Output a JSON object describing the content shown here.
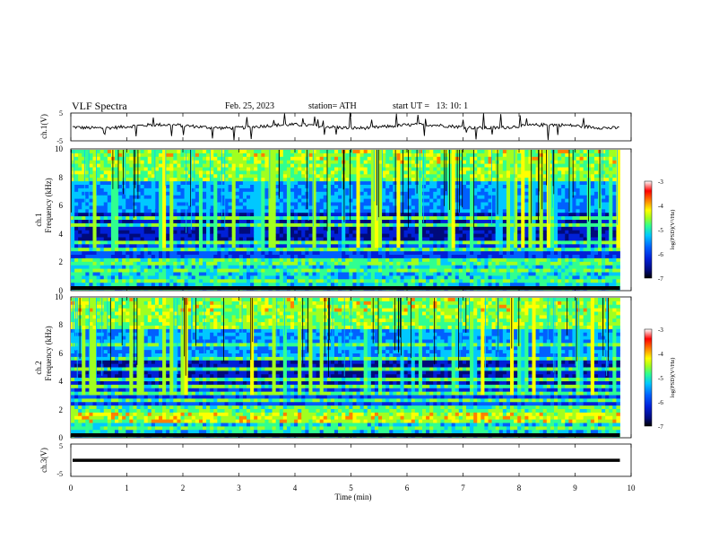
{
  "header": {
    "title": "VLF Spectra",
    "date": "Feb. 25, 2023",
    "station": "station= ATH",
    "start": "start UT =   13: 10: 1"
  },
  "colors": {
    "spectrogram_scale": [
      "#000000",
      "#000a7a",
      "#0020d8",
      "#0060ff",
      "#00c8ff",
      "#30ff90",
      "#a0ff20",
      "#ffff00",
      "#ff8000",
      "#ff0000",
      "#ffffff"
    ]
  },
  "chart_data": [
    {
      "type": "line",
      "panel": "ch1-waveform",
      "ylabel": "ch.1(V)",
      "ylim": [
        -5,
        5
      ],
      "yticks": [
        "5",
        "-5"
      ],
      "xlim": [
        0,
        10
      ],
      "signal_level_v": 0.2
    },
    {
      "type": "heatmap",
      "panel": "ch1-spectrogram",
      "ylabel": "Frequency (kHz)",
      "channel_label": "ch.1",
      "ylim": [
        0,
        10
      ],
      "yticks": [
        "0",
        "2",
        "4",
        "6",
        "8",
        "10"
      ],
      "xlim": [
        0,
        10
      ],
      "data_end_min": 9.8,
      "colorbar": {
        "label": "log(PSD)(V²/Hz)",
        "range": [
          -7,
          -3
        ],
        "ticks": [
          "-3",
          "-4",
          "-5",
          "-6",
          "-7"
        ]
      }
    },
    {
      "type": "heatmap",
      "panel": "ch2-spectrogram",
      "ylabel": "Frequency (kHz)",
      "channel_label": "ch.2",
      "ylim": [
        0,
        10
      ],
      "yticks": [
        "0",
        "2",
        "4",
        "6",
        "8",
        "10"
      ],
      "xlim": [
        0,
        10
      ],
      "data_end_min": 9.8,
      "colorbar": {
        "label": "log(PSD)(V²/Hz)",
        "range": [
          -7,
          -3
        ],
        "ticks": [
          "-3",
          "-4",
          "-5",
          "-6",
          "-7"
        ]
      }
    },
    {
      "type": "line",
      "panel": "ch3-waveform",
      "ylabel": "ch.3(V)",
      "ylim": [
        -5,
        5
      ],
      "yticks": [
        "5",
        "-5"
      ],
      "xlim": [
        0,
        10
      ],
      "signal_level_v": 0.1
    }
  ],
  "xaxis": {
    "label": "Time (min)",
    "ticks": [
      "0",
      "1",
      "2",
      "3",
      "4",
      "5",
      "6",
      "7",
      "8",
      "9",
      "10"
    ]
  }
}
